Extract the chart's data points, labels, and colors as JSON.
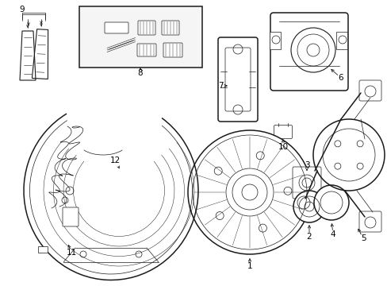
{
  "bg_color": "#ffffff",
  "line_color": "#1a1a1a",
  "text_color": "#000000",
  "fig_width": 4.89,
  "fig_height": 3.6,
  "dpi": 100,
  "label_bg": "#f5f5f5",
  "box_bg": "#e8e8e8"
}
